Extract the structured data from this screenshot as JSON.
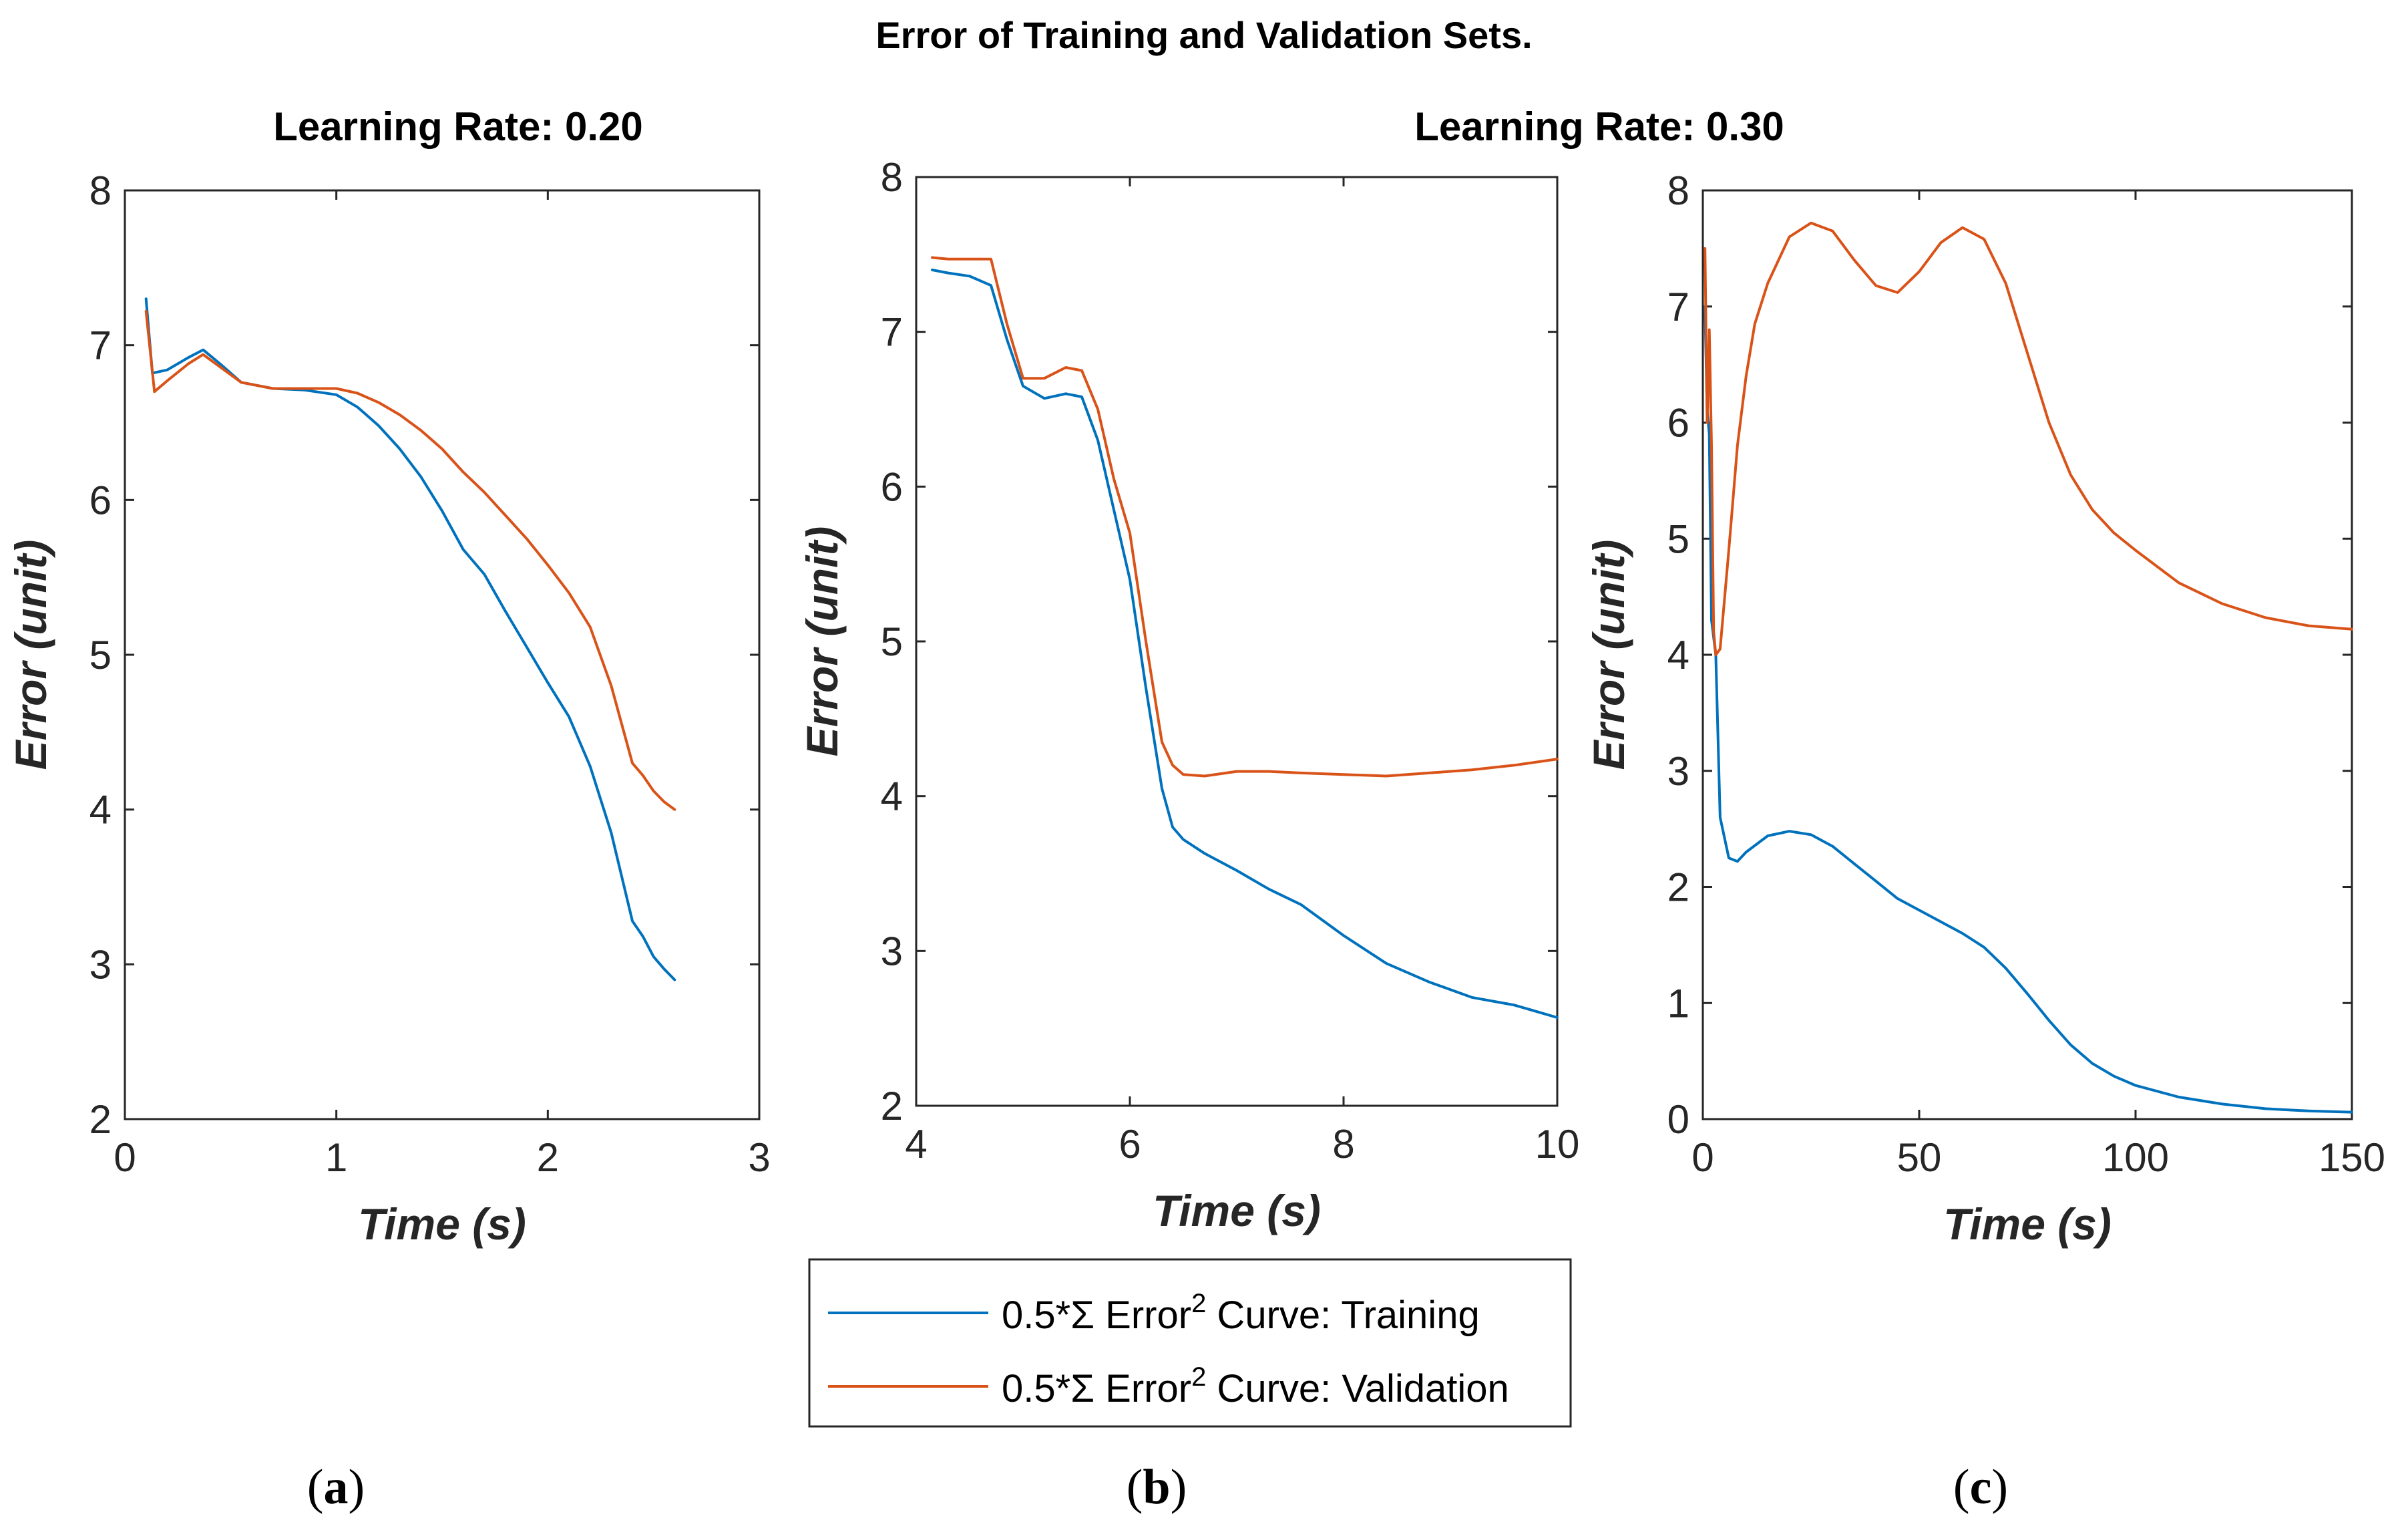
{
  "figure_title": "Error of Training and Validation Sets.",
  "group_titles": [
    "Learning Rate: 0.20",
    "Learning Rate: 0.30"
  ],
  "legend": {
    "prefix": "0.5*Σ Error",
    "superscript": "2",
    "entries": [
      {
        "suffix": " Curve: Training",
        "color": "#0072BD"
      },
      {
        "suffix": " Curve: Validation",
        "color": "#D95319"
      }
    ]
  },
  "panel_labels": [
    "a",
    "b",
    "c"
  ],
  "colors": {
    "training": "#0072BD",
    "validation": "#D95319",
    "axis": "#262626"
  },
  "chart_data": [
    {
      "type": "line",
      "title": "Learning Rate: 0.20",
      "xlabel": "Time (s)",
      "ylabel": "Error (unit)",
      "xlim": [
        0,
        3
      ],
      "ylim": [
        2,
        8
      ],
      "xticks": [
        0,
        1,
        2,
        3
      ],
      "yticks": [
        2,
        3,
        4,
        5,
        6,
        7,
        8
      ],
      "grid": false,
      "series": [
        {
          "name": "0.5*Σ Error^2 Curve: Training",
          "x": [
            0.1,
            0.13,
            0.2,
            0.3,
            0.37,
            0.45,
            0.55,
            0.7,
            0.85,
            1.0,
            1.1,
            1.2,
            1.3,
            1.4,
            1.5,
            1.6,
            1.7,
            1.8,
            1.9,
            2.0,
            2.1,
            2.2,
            2.3,
            2.4,
            2.45,
            2.5,
            2.55,
            2.6
          ],
          "y": [
            7.3,
            6.82,
            6.84,
            6.92,
            6.97,
            6.88,
            6.76,
            6.72,
            6.71,
            6.68,
            6.6,
            6.48,
            6.33,
            6.15,
            5.93,
            5.68,
            5.52,
            5.28,
            5.05,
            4.82,
            4.6,
            4.28,
            3.85,
            3.28,
            3.18,
            3.05,
            2.97,
            2.9
          ]
        },
        {
          "name": "0.5*Σ Error^2 Curve: Validation",
          "x": [
            0.1,
            0.14,
            0.2,
            0.3,
            0.37,
            0.45,
            0.55,
            0.7,
            0.85,
            1.0,
            1.1,
            1.2,
            1.3,
            1.4,
            1.5,
            1.6,
            1.7,
            1.8,
            1.9,
            2.0,
            2.1,
            2.2,
            2.3,
            2.4,
            2.45,
            2.5,
            2.55,
            2.6
          ],
          "y": [
            7.22,
            6.7,
            6.77,
            6.88,
            6.94,
            6.86,
            6.76,
            6.72,
            6.72,
            6.72,
            6.69,
            6.63,
            6.55,
            6.45,
            6.33,
            6.18,
            6.05,
            5.9,
            5.75,
            5.58,
            5.4,
            5.18,
            4.8,
            4.3,
            4.22,
            4.12,
            4.05,
            4.0
          ]
        }
      ]
    },
    {
      "type": "line",
      "title": "",
      "xlabel": "Time (s)",
      "ylabel": "Error (unit)",
      "xlim": [
        4,
        10
      ],
      "ylim": [
        2,
        8
      ],
      "xticks": [
        4,
        6,
        8,
        10
      ],
      "yticks": [
        2,
        3,
        4,
        5,
        6,
        7,
        8
      ],
      "grid": false,
      "series": [
        {
          "name": "0.5*Σ Error^2 Curve: Training",
          "x": [
            4.15,
            4.3,
            4.5,
            4.7,
            4.85,
            5.0,
            5.2,
            5.4,
            5.55,
            5.7,
            5.85,
            6.0,
            6.15,
            6.3,
            6.4,
            6.5,
            6.7,
            7.0,
            7.3,
            7.6,
            8.0,
            8.4,
            8.8,
            9.2,
            9.6,
            10.0
          ],
          "y": [
            7.4,
            7.38,
            7.36,
            7.3,
            6.95,
            6.65,
            6.57,
            6.6,
            6.58,
            6.3,
            5.85,
            5.4,
            4.7,
            4.05,
            3.8,
            3.72,
            3.63,
            3.52,
            3.4,
            3.3,
            3.1,
            2.92,
            2.8,
            2.7,
            2.65,
            2.57
          ]
        },
        {
          "name": "0.5*Σ Error^2 Curve: Validation",
          "x": [
            4.15,
            4.3,
            4.5,
            4.7,
            4.85,
            5.0,
            5.2,
            5.4,
            5.55,
            5.7,
            5.85,
            6.0,
            6.15,
            6.3,
            6.4,
            6.5,
            6.7,
            7.0,
            7.3,
            7.6,
            8.0,
            8.4,
            8.8,
            9.2,
            9.6,
            10.0
          ],
          "y": [
            7.48,
            7.47,
            7.47,
            7.47,
            7.05,
            6.7,
            6.7,
            6.77,
            6.75,
            6.5,
            6.05,
            5.7,
            5.0,
            4.35,
            4.2,
            4.14,
            4.13,
            4.16,
            4.16,
            4.15,
            4.14,
            4.13,
            4.15,
            4.17,
            4.2,
            4.24
          ]
        }
      ]
    },
    {
      "type": "line",
      "title": "",
      "xlabel": "Time (s)",
      "ylabel": "Error (unit)",
      "xlim": [
        0,
        150
      ],
      "ylim": [
        0,
        8
      ],
      "xticks": [
        0,
        50,
        100,
        150
      ],
      "yticks": [
        0,
        1,
        2,
        3,
        4,
        5,
        6,
        7,
        8
      ],
      "grid": false,
      "series": [
        {
          "name": "0.5*Σ Error^2 Curve: Training",
          "x": [
            0.5,
            1.0,
            1.5,
            2.0,
            3.0,
            4.0,
            6.0,
            8.0,
            10.0,
            15.0,
            20.0,
            25.0,
            30.0,
            35.0,
            40.0,
            45.0,
            50.0,
            55.0,
            60.0,
            65.0,
            70.0,
            75.0,
            80.0,
            85.0,
            90.0,
            95.0,
            100.0,
            110.0,
            120.0,
            130.0,
            140.0,
            150.0
          ],
          "y": [
            7.0,
            6.1,
            5.9,
            4.3,
            4.0,
            2.6,
            2.25,
            2.22,
            2.3,
            2.44,
            2.48,
            2.45,
            2.35,
            2.2,
            2.05,
            1.9,
            1.8,
            1.7,
            1.6,
            1.48,
            1.3,
            1.08,
            0.85,
            0.64,
            0.48,
            0.37,
            0.29,
            0.19,
            0.13,
            0.09,
            0.07,
            0.06
          ]
        },
        {
          "name": "0.5*Σ Error^2 Curve: Validation",
          "x": [
            0.5,
            1.0,
            1.5,
            2.0,
            2.5,
            3.0,
            4.0,
            6.0,
            8.0,
            10.0,
            12.0,
            15.0,
            20.0,
            25.0,
            30.0,
            35.0,
            40.0,
            45.0,
            50.0,
            55.0,
            60.0,
            65.0,
            70.0,
            75.0,
            80.0,
            85.0,
            90.0,
            95.0,
            100.0,
            110.0,
            120.0,
            130.0,
            140.0,
            150.0
          ],
          "y": [
            7.5,
            6.0,
            6.8,
            5.8,
            4.2,
            4.0,
            4.05,
            4.9,
            5.8,
            6.4,
            6.85,
            7.2,
            7.6,
            7.72,
            7.65,
            7.4,
            7.18,
            7.12,
            7.3,
            7.55,
            7.68,
            7.58,
            7.2,
            6.6,
            6.0,
            5.55,
            5.25,
            5.05,
            4.9,
            4.62,
            4.44,
            4.32,
            4.25,
            4.22
          ]
        }
      ]
    }
  ]
}
